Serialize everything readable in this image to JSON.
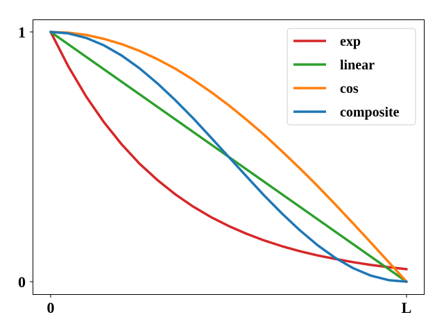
{
  "chart_data": {
    "type": "line",
    "title": "",
    "xlabel": "",
    "ylabel": "",
    "xlim": [
      0,
      1
    ],
    "ylim": [
      0,
      1
    ],
    "xticks": [
      {
        "value": 0,
        "label": "0"
      },
      {
        "value": 1,
        "label": "L"
      }
    ],
    "yticks": [
      {
        "value": 0,
        "label": "0"
      },
      {
        "value": 1,
        "label": "1"
      }
    ],
    "grid": false,
    "legend_position": "top-right",
    "x": [
      0,
      0.05,
      0.1,
      0.15,
      0.2,
      0.25,
      0.3,
      0.35,
      0.4,
      0.45,
      0.5,
      0.55,
      0.6,
      0.65,
      0.7,
      0.75,
      0.8,
      0.85,
      0.9,
      0.95,
      1
    ],
    "series": [
      {
        "name": "exp",
        "color": "#d62728",
        "values": [
          1,
          0.861,
          0.741,
          0.638,
          0.549,
          0.472,
          0.407,
          0.35,
          0.301,
          0.259,
          0.223,
          0.192,
          0.165,
          0.142,
          0.122,
          0.105,
          0.091,
          0.078,
          0.067,
          0.058,
          0.05
        ]
      },
      {
        "name": "linear",
        "color": "#2ca02c",
        "values": [
          1,
          0.95,
          0.9,
          0.85,
          0.8,
          0.75,
          0.7,
          0.65,
          0.6,
          0.55,
          0.5,
          0.45,
          0.4,
          0.35,
          0.3,
          0.25,
          0.2,
          0.15,
          0.1,
          0.05,
          0
        ]
      },
      {
        "name": "cos",
        "color": "#ff7f0e",
        "values": [
          1,
          0.997,
          0.988,
          0.972,
          0.951,
          0.924,
          0.891,
          0.853,
          0.809,
          0.76,
          0.707,
          0.649,
          0.588,
          0.522,
          0.454,
          0.383,
          0.309,
          0.233,
          0.156,
          0.078,
          0
        ]
      },
      {
        "name": "composite",
        "color": "#1f77b4",
        "values": [
          1,
          0.994,
          0.976,
          0.946,
          0.905,
          0.854,
          0.794,
          0.727,
          0.655,
          0.578,
          0.5,
          0.422,
          0.345,
          0.273,
          0.206,
          0.146,
          0.095,
          0.054,
          0.024,
          0.006,
          0
        ]
      }
    ]
  }
}
